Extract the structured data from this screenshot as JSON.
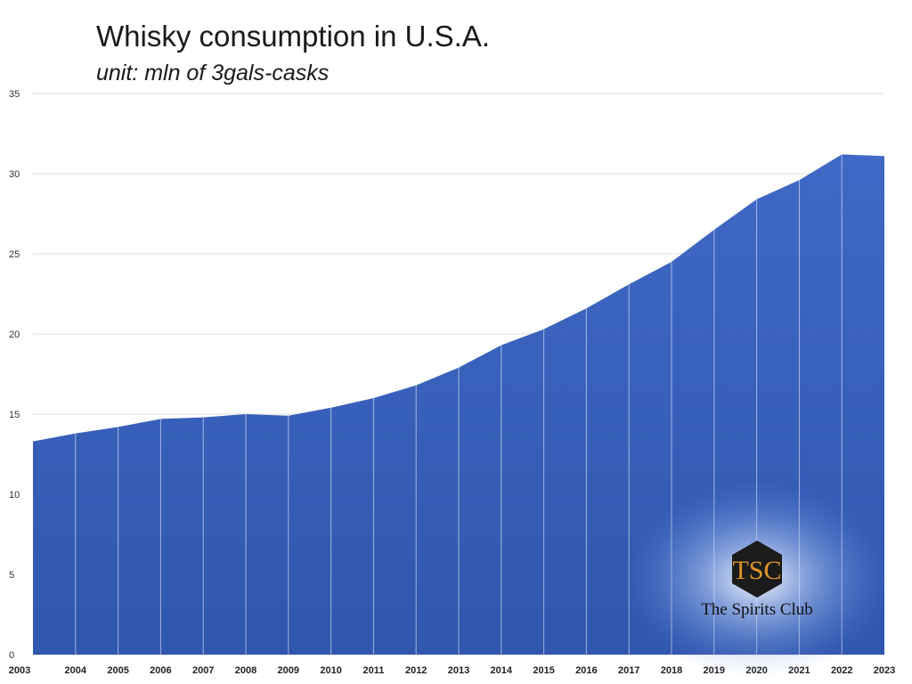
{
  "chart_data": {
    "type": "area",
    "title": "Whisky consumption in U.S.A.",
    "subtitle": "unit: mln of 3gals-casks",
    "xlabel": "",
    "ylabel": "",
    "x": [
      "2003",
      "2004",
      "2005",
      "2006",
      "2007",
      "2008",
      "2009",
      "2010",
      "2011",
      "2012",
      "2013",
      "2014",
      "2015",
      "2016",
      "2017",
      "2018",
      "2019",
      "2020",
      "2021",
      "2022",
      "2023"
    ],
    "values": [
      13.3,
      13.8,
      14.2,
      14.7,
      14.8,
      15.0,
      14.9,
      15.4,
      16.0,
      16.8,
      17.9,
      19.3,
      20.3,
      21.6,
      23.1,
      24.5,
      26.5,
      28.4,
      29.6,
      31.2,
      31.1
    ],
    "ylim": [
      0,
      35
    ],
    "yticks": [
      0,
      5,
      10,
      15,
      20,
      25,
      30,
      35
    ],
    "grid": true,
    "colors": {
      "fill": "#3b63bd",
      "fill_dark": "#2f55a8",
      "grid": "#dddddd",
      "divider": "#ffffff"
    }
  },
  "watermark": {
    "text": "The Spirits Club",
    "monogram": "TSC"
  }
}
